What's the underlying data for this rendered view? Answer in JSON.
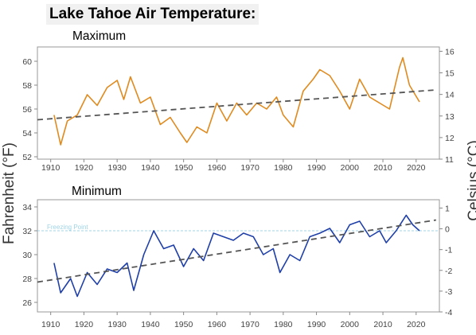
{
  "title": "Lake Tahoe Air Temperature:",
  "left_axis_label": "Fahrenheit  (°F)",
  "right_axis_label": "Celsius  (°C)",
  "colors": {
    "max_series": "#e08a1e",
    "min_series": "#1f3fa8",
    "trend": "#555555",
    "freezing": "#9fd4e6"
  },
  "chart_data": [
    {
      "type": "line",
      "subtitle": "Maximum",
      "xlim": [
        1906,
        2027
      ],
      "xticks": [
        1910,
        1920,
        1930,
        1940,
        1950,
        1960,
        1970,
        1980,
        1990,
        2000,
        2010,
        2020
      ],
      "ylim": [
        51.8,
        61.2
      ],
      "yticks": [
        52,
        54,
        56,
        58,
        60
      ],
      "ylim_c": [
        11,
        16.2
      ],
      "yticks_c": [
        11,
        12,
        13,
        14,
        15,
        16
      ],
      "trend": {
        "x": [
          1906,
          2026
        ],
        "y": [
          55.1,
          57.6
        ]
      },
      "x": [
        1911,
        1913,
        1915,
        1918,
        1921,
        1924,
        1927,
        1930,
        1932,
        1934,
        1937,
        1940,
        1943,
        1946,
        1949,
        1951,
        1954,
        1957,
        1960,
        1963,
        1966,
        1969,
        1972,
        1975,
        1978,
        1980,
        1983,
        1986,
        1989,
        1991,
        1994,
        1997,
        2000,
        2003,
        2006,
        2009,
        2012,
        2015,
        2016,
        2018,
        2021
      ],
      "values": [
        55.5,
        53.0,
        55.0,
        55.5,
        57.2,
        56.3,
        57.8,
        58.4,
        56.8,
        58.7,
        56.5,
        57.0,
        54.7,
        55.3,
        54.0,
        53.2,
        54.5,
        54.0,
        56.5,
        55.0,
        56.5,
        55.5,
        56.5,
        56.0,
        57.0,
        55.5,
        54.5,
        57.5,
        58.5,
        59.3,
        58.8,
        57.5,
        56.0,
        58.5,
        57.0,
        56.5,
        56.0,
        59.5,
        60.3,
        58.0,
        56.6
      ]
    },
    {
      "type": "line",
      "subtitle": "Minimum",
      "freezing_label": "Freezing Point",
      "freezing_value": 32,
      "xlim": [
        1906,
        2027
      ],
      "xticks": [
        1910,
        1920,
        1930,
        1940,
        1950,
        1960,
        1970,
        1980,
        1990,
        2000,
        2010,
        2020
      ],
      "ylim": [
        25.2,
        34.6
      ],
      "yticks": [
        26,
        28,
        30,
        32,
        34
      ],
      "ylim_c": [
        -4,
        1.4
      ],
      "yticks_c": [
        -4,
        -3,
        -2,
        -1,
        0,
        1
      ],
      "trend": {
        "x": [
          1906,
          2026
        ],
        "y": [
          27.7,
          32.9
        ]
      },
      "x": [
        1911,
        1913,
        1916,
        1918,
        1921,
        1924,
        1927,
        1930,
        1933,
        1935,
        1938,
        1941,
        1944,
        1947,
        1950,
        1953,
        1956,
        1959,
        1962,
        1965,
        1968,
        1971,
        1974,
        1977,
        1979,
        1982,
        1985,
        1988,
        1991,
        1994,
        1997,
        2000,
        2003,
        2006,
        2009,
        2011,
        2014,
        2017,
        2019,
        2021
      ],
      "values": [
        29.3,
        26.8,
        28.0,
        26.5,
        28.5,
        27.5,
        28.8,
        28.5,
        29.3,
        27.0,
        30.0,
        32.0,
        30.5,
        30.8,
        29.0,
        30.5,
        29.5,
        31.8,
        31.5,
        31.2,
        31.8,
        31.5,
        30.0,
        30.5,
        28.5,
        30.0,
        29.5,
        31.5,
        31.8,
        32.2,
        31.0,
        32.5,
        32.8,
        31.5,
        32.0,
        31.0,
        32.0,
        33.3,
        32.5,
        32.0
      ]
    }
  ]
}
